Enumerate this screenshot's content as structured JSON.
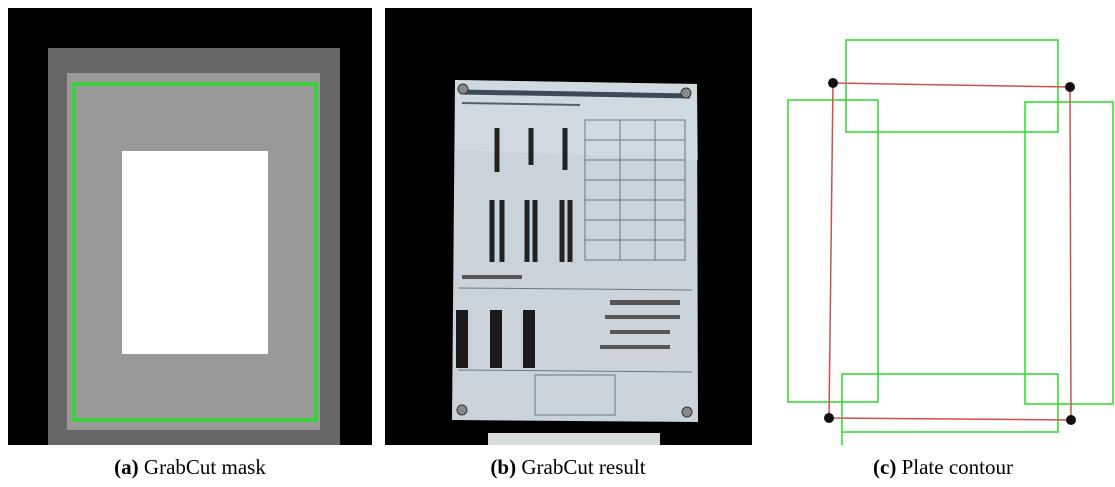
{
  "figure": {
    "panels": [
      {
        "label": "(a)",
        "caption": "GrabCut mask"
      },
      {
        "label": "(b)",
        "caption": "GrabCut result"
      },
      {
        "label": "(c)",
        "caption": "Plate contour"
      }
    ]
  }
}
